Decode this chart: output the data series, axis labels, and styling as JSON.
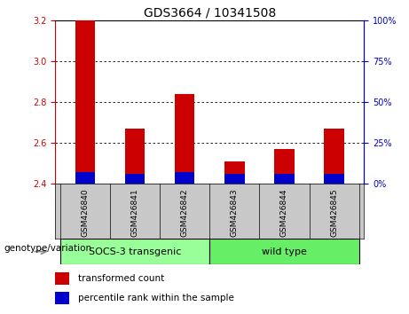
{
  "title": "GDS3664 / 10341508",
  "samples": [
    "GSM426840",
    "GSM426841",
    "GSM426842",
    "GSM426843",
    "GSM426844",
    "GSM426845"
  ],
  "red_values": [
    3.21,
    2.67,
    2.84,
    2.51,
    2.57,
    2.67
  ],
  "blue_values": [
    2.455,
    2.448,
    2.455,
    2.448,
    2.448,
    2.448
  ],
  "y_min": 2.4,
  "y_max": 3.2,
  "y_ticks_left": [
    2.4,
    2.6,
    2.8,
    3.0,
    3.2
  ],
  "y_ticks_right": [
    0,
    25,
    50,
    75,
    100
  ],
  "grid_lines": [
    3.0,
    2.8,
    2.6
  ],
  "bar_width": 0.4,
  "red_color": "#cc0000",
  "blue_color": "#0000cc",
  "group1_label": "SOCS-3 transgenic",
  "group2_label": "wild type",
  "group1_color": "#99ff99",
  "group2_color": "#66ee66",
  "genotype_label": "genotype/variation",
  "legend_red": "transformed count",
  "legend_blue": "percentile rank within the sample",
  "tick_color_left": "#cc0000",
  "tick_color_right": "#0000cc",
  "label_area_color": "#c8c8c8",
  "title_fontsize": 10,
  "tick_fontsize": 7,
  "sample_fontsize": 6.5,
  "group_fontsize": 8,
  "legend_fontsize": 7.5,
  "genotype_fontsize": 7.5
}
